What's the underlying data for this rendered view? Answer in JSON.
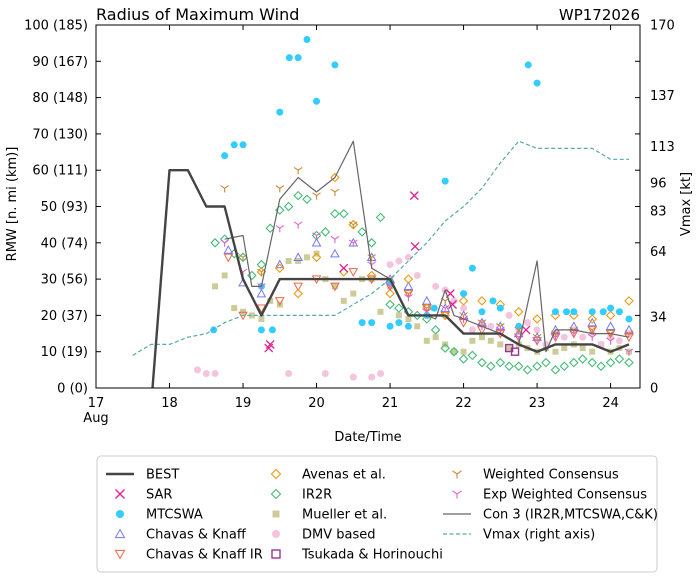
{
  "chart_data": {
    "type": "line",
    "title": "Radius of Maximum Wind",
    "storm_id": "WP172026",
    "xlabel": "Date/Time",
    "ylabel": "RMW [n. mi (km)]",
    "y2label": "Vmax [kt]",
    "xlim": [
      17,
      24.4
    ],
    "ylim": [
      0,
      100
    ],
    "x_ticks": [
      {
        "x": 17,
        "label": "17",
        "sublabel": "Aug"
      },
      {
        "x": 18,
        "label": "18"
      },
      {
        "x": 19,
        "label": "19"
      },
      {
        "x": 20,
        "label": "20"
      },
      {
        "x": 21,
        "label": "21"
      },
      {
        "x": 22,
        "label": "22"
      },
      {
        "x": 23,
        "label": "23"
      },
      {
        "x": 24,
        "label": "24"
      }
    ],
    "y_ticks": [
      {
        "v": 0,
        "label": "0 (0)"
      },
      {
        "v": 10,
        "label": "10 (19)"
      },
      {
        "v": 20,
        "label": "20 (37)"
      },
      {
        "v": 30,
        "label": "30 (56)"
      },
      {
        "v": 40,
        "label": "40 (74)"
      },
      {
        "v": 50,
        "label": "50 (93)"
      },
      {
        "v": 60,
        "label": "60 (111)"
      },
      {
        "v": 70,
        "label": "70 (130)"
      },
      {
        "v": 80,
        "label": "80 (148)"
      },
      {
        "v": 90,
        "label": "90 (167)"
      },
      {
        "v": 100,
        "label": "100 (185)"
      }
    ],
    "y2_ticks": [
      {
        "v": 0,
        "label": "0"
      },
      {
        "v": 19.6,
        "label": "34"
      },
      {
        "v": 37.6,
        "label": "64"
      },
      {
        "v": 48.8,
        "label": "83"
      },
      {
        "v": 56.5,
        "label": "96"
      },
      {
        "v": 66.5,
        "label": "113"
      },
      {
        "v": 80.6,
        "label": "137"
      },
      {
        "v": 100,
        "label": "170"
      }
    ],
    "series": [
      {
        "name": "BEST",
        "kind": "line",
        "color": "#444444",
        "width": 2.4,
        "x": [
          17.75,
          18.0,
          18.25,
          18.5,
          18.75,
          19.0,
          19.25,
          19.5,
          19.75,
          20.0,
          20.25,
          20.5,
          20.75,
          21.0,
          21.25,
          21.5,
          21.75,
          22.0,
          22.25,
          22.5,
          22.75,
          23.0,
          23.25,
          23.5,
          23.75,
          24.0,
          24.25
        ],
        "y": [
          -5,
          60,
          60,
          50,
          50,
          30,
          20,
          30,
          30,
          30,
          30,
          30,
          30,
          30,
          20,
          20,
          20,
          15,
          15,
          15,
          12,
          10,
          12,
          12,
          12,
          10,
          12
        ]
      },
      {
        "name": "SAR",
        "kind": "marker",
        "shape": "x",
        "color": "#e0208f",
        "x": [
          19.35,
          19.37,
          20.37,
          21.33,
          21.34,
          21.82,
          21.85,
          22.85
        ],
        "y": [
          11,
          12,
          33,
          53,
          39,
          26,
          23,
          16
        ]
      },
      {
        "name": "MTCSWA",
        "kind": "marker",
        "shape": "dot",
        "color": "#33ccff",
        "x": [
          18.6,
          18.75,
          18.88,
          19.0,
          19.25,
          19.5,
          19.63,
          19.75,
          19.87,
          20.0,
          20.25,
          20.62,
          20.75,
          21.0,
          21.12,
          21.25,
          21.5,
          21.75,
          22.0,
          22.12,
          22.25,
          22.5,
          22.75,
          22.88,
          23.0,
          23.25,
          23.5,
          23.75,
          24.0,
          24.12
        ],
        "y": [
          16,
          64,
          67,
          67,
          16,
          76,
          91,
          91,
          96,
          79,
          89,
          18,
          18,
          29,
          18,
          17,
          20,
          57,
          26,
          33,
          21,
          22,
          17,
          89,
          84,
          21,
          21,
          21,
          22,
          21
        ],
        "extra_x": [
          19.25,
          19.4,
          21.0,
          21.6,
          22.4,
          23.4,
          23.9,
          24.25
        ],
        "extra_y": [
          28,
          16,
          17,
          22,
          24,
          21,
          21,
          19
        ]
      },
      {
        "name": "Chavas & Knaff",
        "kind": "marker",
        "shape": "tri_up",
        "color": "#7777ee",
        "x": [
          18.8,
          19.0,
          19.25,
          19.5,
          19.75,
          20.0,
          20.25,
          20.5,
          20.75,
          21.0,
          21.25,
          21.5,
          21.75,
          22.0,
          22.25,
          22.5,
          22.75,
          23.0,
          23.25,
          23.5,
          23.75,
          24.0,
          24.25
        ],
        "y": [
          38,
          29,
          26,
          34,
          36,
          40,
          37,
          40,
          36,
          30,
          28,
          24,
          22,
          20,
          18,
          17,
          15,
          14,
          16,
          17,
          18,
          17,
          16
        ]
      },
      {
        "name": "Chavas & Knaff IR",
        "kind": "marker",
        "shape": "tri_down",
        "color": "#ee6644",
        "x": [
          18.8,
          19.0,
          19.25,
          19.5,
          19.75,
          20.0,
          20.25,
          20.5,
          20.75,
          21.0,
          21.25,
          21.5,
          21.75,
          22.0,
          22.25,
          22.5,
          22.75,
          23.0,
          23.25,
          23.5,
          23.75,
          24.0,
          24.25
        ],
        "y": [
          36,
          20,
          22,
          24,
          28,
          30,
          28,
          32,
          30,
          28,
          26,
          22,
          20,
          18,
          16,
          15,
          14,
          13,
          14,
          15,
          16,
          15,
          14
        ]
      },
      {
        "name": "Avenas et al.",
        "kind": "marker",
        "shape": "diamond",
        "color": "#ee9911",
        "x": [
          19.25,
          19.5,
          19.75,
          20.0,
          20.25,
          20.37,
          20.5,
          20.75,
          21.0,
          21.25,
          21.5,
          21.75,
          22.0,
          22.25,
          22.5,
          22.75,
          23.0,
          23.25,
          23.5,
          23.75,
          24.0,
          24.25
        ],
        "y": [
          32,
          33,
          26,
          36,
          58,
          32,
          45,
          31,
          26,
          30,
          22,
          20,
          24,
          24,
          23,
          21,
          19,
          20,
          20,
          19,
          20,
          24
        ]
      },
      {
        "name": "IR2R",
        "kind": "marker",
        "shape": "diamond",
        "color": "#44bb77",
        "x": [
          18.62,
          18.75,
          18.88,
          19.0,
          19.12,
          19.25,
          19.37,
          19.5,
          19.62,
          19.75,
          19.87,
          20.0,
          20.12,
          20.25,
          20.37,
          20.5,
          20.62,
          20.75,
          20.87,
          21.0,
          21.12,
          21.25,
          21.37,
          21.5,
          21.62,
          21.75,
          21.87,
          22.0,
          22.12,
          22.25,
          22.37,
          22.5,
          22.62,
          22.75,
          22.87,
          23.0,
          23.12,
          23.25,
          23.37,
          23.5,
          23.62,
          23.75,
          23.87,
          24.0,
          24.12,
          24.25
        ],
        "y": [
          40,
          41,
          37,
          36,
          31,
          34,
          44,
          49,
          50,
          53,
          52,
          42,
          43,
          48,
          48,
          45,
          43,
          40,
          47,
          23,
          22,
          21,
          20,
          19,
          16,
          11,
          10,
          8,
          9,
          7,
          6,
          7,
          6,
          6,
          5,
          6,
          7,
          5,
          6,
          7,
          8,
          7,
          6,
          7,
          8,
          7
        ]
      },
      {
        "name": "Mueller et al.",
        "kind": "marker",
        "shape": "square",
        "color": "#cccc99",
        "x": [
          18.62,
          18.75,
          18.88,
          19.0,
          19.12,
          19.25,
          19.37,
          19.5,
          19.62,
          19.75,
          19.87,
          20.0,
          20.12,
          20.25,
          20.37,
          20.5,
          20.62,
          20.75,
          20.87,
          21.0,
          21.12,
          21.25,
          21.37,
          21.5,
          21.62,
          21.75,
          21.87,
          22.0,
          22.12,
          22.25,
          22.37,
          22.5,
          22.62,
          22.75,
          22.87,
          23.0,
          23.12,
          23.25,
          23.37,
          23.5,
          23.62,
          23.75,
          23.87,
          24.0,
          24.12,
          24.25
        ],
        "y": [
          28,
          31,
          22,
          21,
          20,
          19,
          24,
          23,
          35,
          35,
          36,
          37,
          30,
          28,
          24,
          26,
          30,
          30,
          21,
          28,
          20,
          19,
          17,
          13,
          14,
          12,
          10,
          10,
          13,
          14,
          13,
          12,
          11,
          12,
          11,
          10,
          11,
          10,
          11,
          12,
          11,
          10,
          12,
          10,
          11,
          10
        ]
      },
      {
        "name": "DMV based",
        "kind": "marker",
        "shape": "dot",
        "color": "#f4c4de",
        "x": [
          18.38,
          18.5,
          18.62,
          19.62,
          20.12,
          20.5,
          20.75,
          20.87,
          21.0,
          21.12,
          21.25,
          21.37,
          21.5,
          21.62,
          21.75,
          21.87,
          22.0,
          22.12,
          22.25,
          22.37,
          22.5,
          22.62,
          22.75,
          22.87,
          23.0,
          23.12,
          23.25,
          23.37,
          23.5,
          23.62,
          23.75,
          23.87,
          24.0,
          24.12,
          24.25
        ],
        "y": [
          5,
          4,
          4,
          4,
          4,
          3,
          3,
          4,
          34,
          35,
          36,
          31,
          20,
          28,
          27,
          24,
          22,
          16,
          18,
          17,
          15,
          20,
          16,
          18,
          16,
          12,
          15,
          14,
          16,
          14,
          15,
          12,
          14,
          13,
          15
        ]
      },
      {
        "name": "Tsukada & Horinouchi",
        "kind": "marker",
        "shape": "square_open",
        "color": "#993399",
        "x": [
          22.62,
          22.7
        ],
        "y": [
          11,
          10
        ]
      },
      {
        "name": "Weighted Consensus",
        "kind": "marker",
        "shape": "tri_y",
        "color": "#cc8833",
        "x": [
          18.75,
          19.0,
          19.25,
          19.5,
          19.75,
          20.0,
          20.25,
          20.5,
          20.75,
          21.0,
          21.25,
          21.5,
          21.75,
          22.0,
          22.25,
          22.5,
          22.75,
          23.0,
          23.25,
          23.5,
          23.75,
          24.0,
          24.25
        ],
        "y": [
          55,
          36,
          32,
          55,
          60,
          53,
          54,
          45,
          36,
          30,
          26,
          22,
          24,
          20,
          18,
          17,
          16,
          14,
          15,
          16,
          16,
          15,
          15
        ]
      },
      {
        "name": "Exp Weighted Consensus",
        "kind": "marker",
        "shape": "tri_y",
        "color": "#dd66cc",
        "x": [
          18.75,
          19.0,
          19.25,
          19.5,
          19.75,
          20.0,
          20.25,
          20.5,
          20.75,
          21.0,
          21.25,
          21.5,
          21.75,
          22.0,
          22.25,
          22.5,
          22.75,
          23.0,
          23.25,
          23.5,
          23.75,
          24.0,
          24.25
        ],
        "y": [
          40,
          32,
          28,
          44,
          45,
          42,
          41,
          40,
          34,
          28,
          25,
          21,
          22,
          19,
          17,
          16,
          14,
          13,
          14,
          15,
          14,
          13,
          10
        ]
      },
      {
        "name": "Con 3 (IR2R,MTCSWA,C&K)",
        "kind": "line",
        "color": "#666666",
        "width": 1.2,
        "x": [
          18.75,
          19.0,
          19.12,
          19.25,
          19.5,
          19.75,
          20.0,
          20.25,
          20.5,
          20.75,
          21.0,
          21.25,
          21.5,
          21.62,
          21.75,
          21.87,
          22.0,
          22.25,
          22.5,
          22.75,
          23.0,
          23.12,
          23.25,
          23.5,
          23.75,
          24.0,
          24.25
        ],
        "y": [
          41,
          42,
          28,
          28,
          52,
          58,
          54,
          58,
          68,
          33,
          30,
          20,
          20,
          19,
          27,
          20,
          19,
          17,
          15,
          12,
          35,
          10,
          16,
          16,
          15,
          15,
          14
        ]
      },
      {
        "name": "Vmax (right axis)",
        "kind": "line",
        "dash": true,
        "color": "#55aaaa",
        "width": 1.2,
        "x": [
          17.5,
          17.75,
          18.0,
          18.25,
          18.5,
          18.75,
          19.0,
          19.25,
          19.5,
          19.75,
          20.0,
          20.25,
          20.5,
          20.75,
          21.0,
          21.25,
          21.5,
          21.75,
          22.0,
          22.25,
          22.5,
          22.75,
          23.0,
          23.25,
          23.5,
          23.75,
          24.0,
          24.25
        ],
        "y": [
          9,
          12,
          12,
          14,
          15,
          18,
          20,
          20,
          20,
          20,
          20,
          20,
          23,
          26,
          30,
          35,
          40,
          46,
          50,
          55,
          62,
          68,
          66,
          66,
          66,
          66,
          63,
          63
        ]
      }
    ],
    "legend": {
      "placement": "bottom",
      "columns": 3
    }
  }
}
